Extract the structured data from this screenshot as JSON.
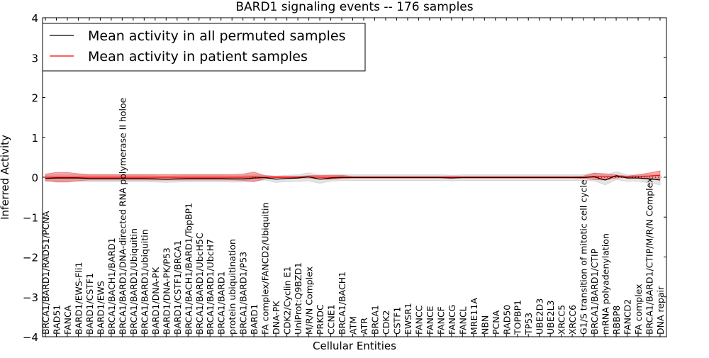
{
  "chart_data": {
    "type": "line",
    "title": "BARD1 signaling events -- 176 samples",
    "xlabel": "Cellular Entities",
    "ylabel": "Inferred Activity",
    "ylim": [
      -4,
      4
    ],
    "yticks": [
      -4,
      -3,
      -2,
      -1,
      0,
      1,
      2,
      3,
      4
    ],
    "ytick_labels": [
      "−4",
      "−3",
      "−2",
      "−1",
      "0",
      "1",
      "2",
      "3",
      "4"
    ],
    "legend_position": "top-left",
    "categories": [
      "BRCA1/BARD1/RAD51/PCNA",
      "RAD51",
      "FANCA",
      "BARD1/EWS-Fli1",
      "BARD1/CSTF1",
      "BARD1/EWS",
      "BRCA1/BACH1/BARD1",
      "BRCA1/BARD1/DNA-directed RNA polymerase II holoe",
      "BRCA1/BARD1/Ubiquitin",
      "BRCA1/BARD1/ubiquitin",
      "BARD1/DNA-PK",
      "BARD1/DNA-PK/P53",
      "BARD1/CSTF1/BRCA1",
      "BRCA1/BACH1/BARD1/TopBP1",
      "BRCA1/BARD1/UbcH5C",
      "BRCA1/BARD1/UbcH7",
      "BRCA1/BARD1",
      "protein ubiquitination",
      "BRCA1/BARD1/P53",
      "BARD1",
      "FA complex/FANCD2/Ubiquitin",
      "DNA-PK",
      "CDK2/Cyclin E1",
      "UniProt:Q9BZD1",
      "M/R/N Complex",
      "PRKDC",
      "CCNE1",
      "BRCA1/BACH1",
      "ATM",
      "ATR",
      "BRCA1",
      "CDK2",
      "CSTF1",
      "EWSR1",
      "FANCC",
      "FANCE",
      "FANCF",
      "FANCG",
      "FANCL",
      "MRE11A",
      "NBN",
      "PCNA",
      "RAD50",
      "TOPBP1",
      "TP53",
      "UBE2D3",
      "UBE2L3",
      "XRCC5",
      "XRCC6",
      "G1/S transition of mitotic cell cycle",
      "BRCA1/BARD1/CTIP",
      "mRNA polyadenylation",
      "RBBP8",
      "FANCD2",
      "FA complex",
      "BRCA1/BARD1/CTIP/M/R/N Complex",
      "DNA repair"
    ],
    "series": [
      {
        "name": "Mean activity in all permuted samples",
        "color": "#000000",
        "values": [
          -0.03,
          -0.02,
          -0.02,
          -0.02,
          -0.03,
          -0.03,
          -0.03,
          -0.03,
          -0.03,
          -0.03,
          -0.04,
          -0.05,
          -0.04,
          -0.03,
          -0.03,
          -0.03,
          -0.03,
          -0.04,
          -0.04,
          -0.02,
          -0.01,
          -0.05,
          -0.03,
          -0.02,
          0.01,
          -0.05,
          -0.02,
          -0.01,
          -0.01,
          -0.01,
          -0.01,
          -0.01,
          -0.01,
          -0.01,
          -0.01,
          -0.01,
          -0.01,
          -0.02,
          -0.01,
          -0.01,
          -0.01,
          -0.01,
          -0.01,
          -0.01,
          -0.01,
          -0.01,
          -0.01,
          -0.01,
          -0.01,
          -0.01,
          0.01,
          -0.07,
          0.04,
          -0.02,
          -0.02,
          -0.04,
          -0.07
        ],
        "band": [
          0.08,
          0.08,
          0.08,
          0.08,
          0.08,
          0.08,
          0.08,
          0.08,
          0.08,
          0.08,
          0.08,
          0.08,
          0.08,
          0.08,
          0.08,
          0.08,
          0.08,
          0.08,
          0.08,
          0.08,
          0.06,
          0.08,
          0.08,
          0.08,
          0.1,
          0.1,
          0.08,
          0.07,
          0.07,
          0.07,
          0.07,
          0.07,
          0.07,
          0.07,
          0.07,
          0.07,
          0.07,
          0.07,
          0.07,
          0.07,
          0.07,
          0.07,
          0.07,
          0.07,
          0.07,
          0.07,
          0.07,
          0.07,
          0.07,
          0.07,
          0.1,
          0.12,
          0.1,
          0.08,
          0.08,
          0.1,
          0.12
        ]
      },
      {
        "name": "Mean activity in patient samples",
        "color": "#ff0000",
        "values": [
          0,
          0,
          0,
          0,
          0,
          0,
          0,
          0,
          0,
          0,
          0,
          0,
          0,
          0,
          0,
          0,
          0,
          0,
          0,
          0.01,
          0,
          0,
          0,
          0,
          0.01,
          0,
          0,
          0.01,
          0,
          0,
          0,
          0,
          0,
          0,
          0,
          0,
          0,
          0,
          0,
          0,
          0,
          0,
          0,
          0,
          0,
          0,
          0,
          0,
          0,
          0,
          0.02,
          0.01,
          0.02,
          0.01,
          0.02,
          0.03,
          0.05
        ],
        "band": [
          0.08,
          0.12,
          0.12,
          0.09,
          0.07,
          0.07,
          0.07,
          0.07,
          0.07,
          0.07,
          0.07,
          0.07,
          0.07,
          0.07,
          0.07,
          0.07,
          0.07,
          0.07,
          0.08,
          0.12,
          0.04,
          0.02,
          0.02,
          0.02,
          0.03,
          0.05,
          0.05,
          0.04,
          0.02,
          0.02,
          0.02,
          0.02,
          0.02,
          0.02,
          0.02,
          0.02,
          0.02,
          0.02,
          0.02,
          0.02,
          0.02,
          0.02,
          0.02,
          0.02,
          0.02,
          0.02,
          0.02,
          0.02,
          0.02,
          0.03,
          0.08,
          0.08,
          0.04,
          0.02,
          0.04,
          0.08,
          0.11
        ]
      }
    ]
  }
}
